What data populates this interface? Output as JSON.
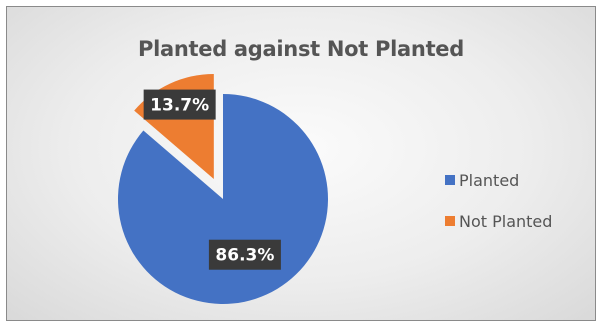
{
  "chart_data": {
    "type": "pie",
    "title": "Planted against Not Planted",
    "categories": [
      "Planted",
      "Not Planted"
    ],
    "values": [
      86.3,
      13.7
    ],
    "data_labels": [
      "86.3%",
      "13.7%"
    ],
    "colors": [
      "#4472c4",
      "#ed7d31"
    ],
    "exploded": [
      false,
      true
    ],
    "legend_position": "right",
    "label_style": {
      "background": "#3a3a3a",
      "color": "#ffffff"
    }
  }
}
